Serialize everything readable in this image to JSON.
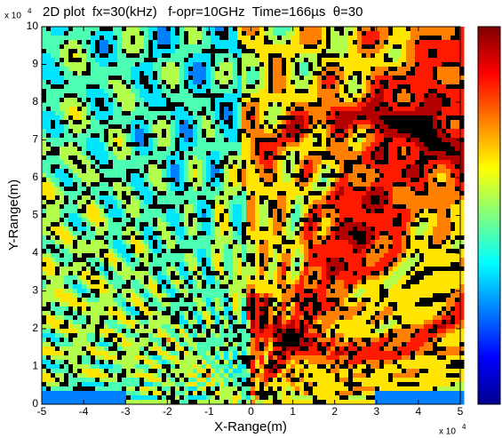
{
  "chart_data": {
    "type": "contour",
    "title": "2D plot  fx=30(kHz)   f-opr=10GHz  Time=166µs  θ=30",
    "x_label": "X-Range(m)",
    "y_label": "Y-Range(m)",
    "x_multiplier": {
      "base": "x 10",
      "exponent": "4"
    },
    "y_multiplier": {
      "base": "x 10",
      "exponent": "4"
    },
    "xlim": [
      -50000,
      50000
    ],
    "ylim": [
      0,
      100000
    ],
    "xticks": [
      {
        "value": -50000,
        "label": "-5"
      },
      {
        "value": -40000,
        "label": "-4"
      },
      {
        "value": -30000,
        "label": "-3"
      },
      {
        "value": -20000,
        "label": "-2"
      },
      {
        "value": -10000,
        "label": "-1"
      },
      0,
      {
        "value": 10000,
        "label": "1"
      },
      {
        "value": 20000,
        "label": "2"
      },
      {
        "value": 30000,
        "label": "3"
      },
      {
        "value": 40000,
        "label": "4"
      },
      {
        "value": 50000,
        "label": "5"
      }
    ],
    "yticks": [
      0,
      {
        "value": 10000,
        "label": "1"
      },
      {
        "value": 20000,
        "label": "2"
      },
      {
        "value": 30000,
        "label": "3"
      },
      {
        "value": 40000,
        "label": "4"
      },
      {
        "value": 50000,
        "label": "5"
      },
      {
        "value": 60000,
        "label": "6"
      },
      {
        "value": 70000,
        "label": "7"
      },
      {
        "value": 80000,
        "label": "8"
      },
      {
        "value": 90000,
        "label": "9"
      },
      {
        "value": 100000,
        "label": "10"
      }
    ],
    "colormap": "jet",
    "colorbar": true
  }
}
